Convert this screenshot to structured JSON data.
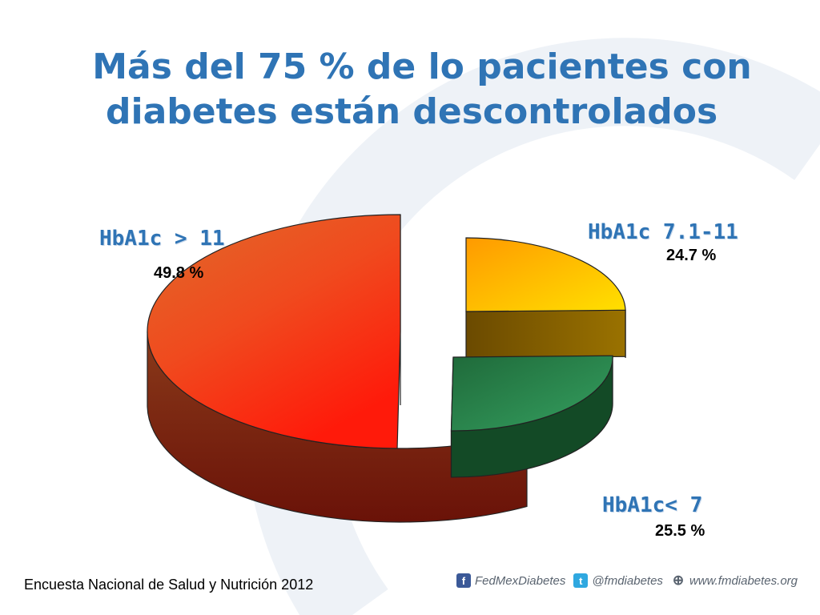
{
  "title_line1": "Más del 75 % de lo pacientes con",
  "title_line2": "diabetes están descontrolados",
  "source": "Encuesta Nacional de Salud y Nutrición 2012",
  "footer": {
    "facebook": "FedMexDiabetes",
    "twitter": "@fmdiabetes",
    "website": "www.fmdiabetes.org",
    "facebook_icon": "facebook-icon",
    "twitter_icon": "twitter-icon",
    "web_icon": "globe-icon"
  },
  "colors": {
    "title": "#2f74b5",
    "slice_high": "#ff2a10",
    "slice_mid": "#ffb400",
    "slice_low": "#2a8a4a"
  },
  "chart_data": {
    "type": "pie",
    "style": "3d-exploded",
    "categories": [
      "HbA1c > 11",
      "HbA1c 7.1-11",
      "HbA1c< 7"
    ],
    "values": [
      49.8,
      24.7,
      25.5
    ],
    "value_labels": [
      "49.8 %",
      "24.7 %",
      "25.5 %"
    ],
    "title": "Más del 75 % de lo pacientes con diabetes están descontrolados"
  }
}
